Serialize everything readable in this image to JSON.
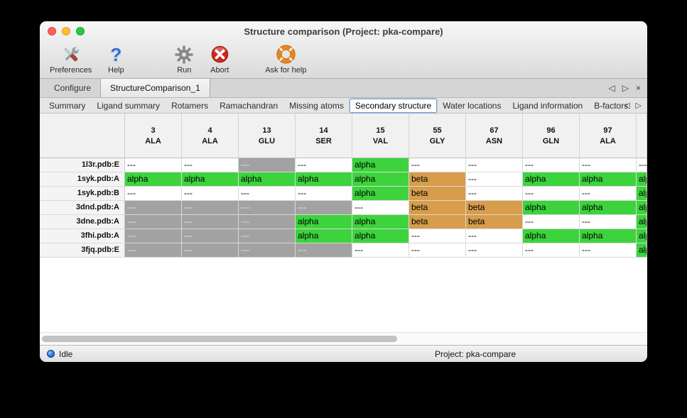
{
  "window": {
    "title": "Structure comparison (Project: pka-compare)"
  },
  "toolbar": {
    "items": [
      {
        "label": "Preferences"
      },
      {
        "label": "Help",
        "glyph": "?"
      },
      {
        "label": "Run"
      },
      {
        "label": "Abort"
      },
      {
        "label": "Ask for help"
      }
    ]
  },
  "doc_tabs": {
    "tabs": [
      {
        "label": "Configure",
        "active": false
      },
      {
        "label": "StructureComparison_1",
        "active": true
      }
    ],
    "controls": {
      "left": "◁",
      "right": "▷",
      "close": "×"
    }
  },
  "view_tabs": {
    "tabs": [
      "Summary",
      "Ligand summary",
      "Rotamers",
      "Ramachandran",
      "Missing atoms",
      "Secondary structure",
      "Water locations",
      "Ligand information",
      "B-factors"
    ],
    "selected": "Secondary structure",
    "controls": {
      "left": "◁",
      "right": "▷"
    }
  },
  "table": {
    "columns": [
      {
        "num": "3",
        "res": "ALA"
      },
      {
        "num": "4",
        "res": "ALA"
      },
      {
        "num": "13",
        "res": "GLU"
      },
      {
        "num": "14",
        "res": "SER"
      },
      {
        "num": "15",
        "res": "VAL"
      },
      {
        "num": "55",
        "res": "GLY"
      },
      {
        "num": "67",
        "res": "ASN"
      },
      {
        "num": "96",
        "res": "GLN"
      },
      {
        "num": "97",
        "res": "ALA"
      },
      {
        "num": "",
        "res": "",
        "partial": true
      }
    ],
    "rows": [
      {
        "name": "1l3r.pdb:E",
        "cells": [
          [
            "---",
            "plain"
          ],
          [
            "---",
            "plain"
          ],
          [
            "---",
            "gray"
          ],
          [
            "---",
            "plain"
          ],
          [
            "alpha",
            "alpha"
          ],
          [
            "---",
            "plain"
          ],
          [
            "---",
            "plain"
          ],
          [
            "---",
            "plain"
          ],
          [
            "---",
            "plain"
          ],
          [
            "---",
            "plain"
          ]
        ]
      },
      {
        "name": "1syk.pdb:A",
        "cells": [
          [
            "alpha",
            "alpha"
          ],
          [
            "alpha",
            "alpha"
          ],
          [
            "alpha",
            "alpha"
          ],
          [
            "alpha",
            "alpha"
          ],
          [
            "alpha",
            "alpha"
          ],
          [
            "beta",
            "beta"
          ],
          [
            "---",
            "plain"
          ],
          [
            "alpha",
            "alpha"
          ],
          [
            "alpha",
            "alpha"
          ],
          [
            "alpha",
            "alpha"
          ]
        ]
      },
      {
        "name": "1syk.pdb:B",
        "cells": [
          [
            "---",
            "plain"
          ],
          [
            "---",
            "plain"
          ],
          [
            "---",
            "plain"
          ],
          [
            "---",
            "plain"
          ],
          [
            "alpha",
            "alpha"
          ],
          [
            "beta",
            "beta"
          ],
          [
            "---",
            "plain"
          ],
          [
            "---",
            "plain"
          ],
          [
            "---",
            "plain"
          ],
          [
            "alpha",
            "alpha"
          ]
        ]
      },
      {
        "name": "3dnd.pdb:A",
        "cells": [
          [
            "---",
            "gray"
          ],
          [
            "---",
            "gray"
          ],
          [
            "---",
            "gray"
          ],
          [
            "---",
            "gray"
          ],
          [
            "---",
            "plain"
          ],
          [
            "beta",
            "beta"
          ],
          [
            "beta",
            "beta"
          ],
          [
            "alpha",
            "alpha"
          ],
          [
            "alpha",
            "alpha"
          ],
          [
            "alpha",
            "alpha"
          ]
        ]
      },
      {
        "name": "3dne.pdb:A",
        "cells": [
          [
            "---",
            "gray"
          ],
          [
            "---",
            "gray"
          ],
          [
            "---",
            "gray"
          ],
          [
            "alpha",
            "alpha"
          ],
          [
            "alpha",
            "alpha"
          ],
          [
            "beta",
            "beta"
          ],
          [
            "beta",
            "beta"
          ],
          [
            "---",
            "plain"
          ],
          [
            "---",
            "plain"
          ],
          [
            "alpha",
            "alpha"
          ]
        ]
      },
      {
        "name": "3fhi.pdb:A",
        "cells": [
          [
            "---",
            "gray"
          ],
          [
            "---",
            "gray"
          ],
          [
            "---",
            "gray"
          ],
          [
            "alpha",
            "alpha"
          ],
          [
            "alpha",
            "alpha"
          ],
          [
            "---",
            "plain"
          ],
          [
            "---",
            "plain"
          ],
          [
            "alpha",
            "alpha"
          ],
          [
            "alpha",
            "alpha"
          ],
          [
            "alpha",
            "alpha"
          ]
        ]
      },
      {
        "name": "3fjq.pdb:E",
        "cells": [
          [
            "---",
            "gray"
          ],
          [
            "---",
            "gray"
          ],
          [
            "---",
            "gray"
          ],
          [
            "---",
            "gray"
          ],
          [
            "---",
            "plain"
          ],
          [
            "---",
            "plain"
          ],
          [
            "---",
            "plain"
          ],
          [
            "---",
            "plain"
          ],
          [
            "---",
            "plain"
          ],
          [
            "alpha",
            "alpha"
          ]
        ]
      }
    ]
  },
  "statusbar": {
    "status": "Idle",
    "project": "Project: pka-compare"
  },
  "colors": {
    "alpha": "#3dd33d",
    "beta": "#d79d4a",
    "gray": "#a2a2a2"
  }
}
